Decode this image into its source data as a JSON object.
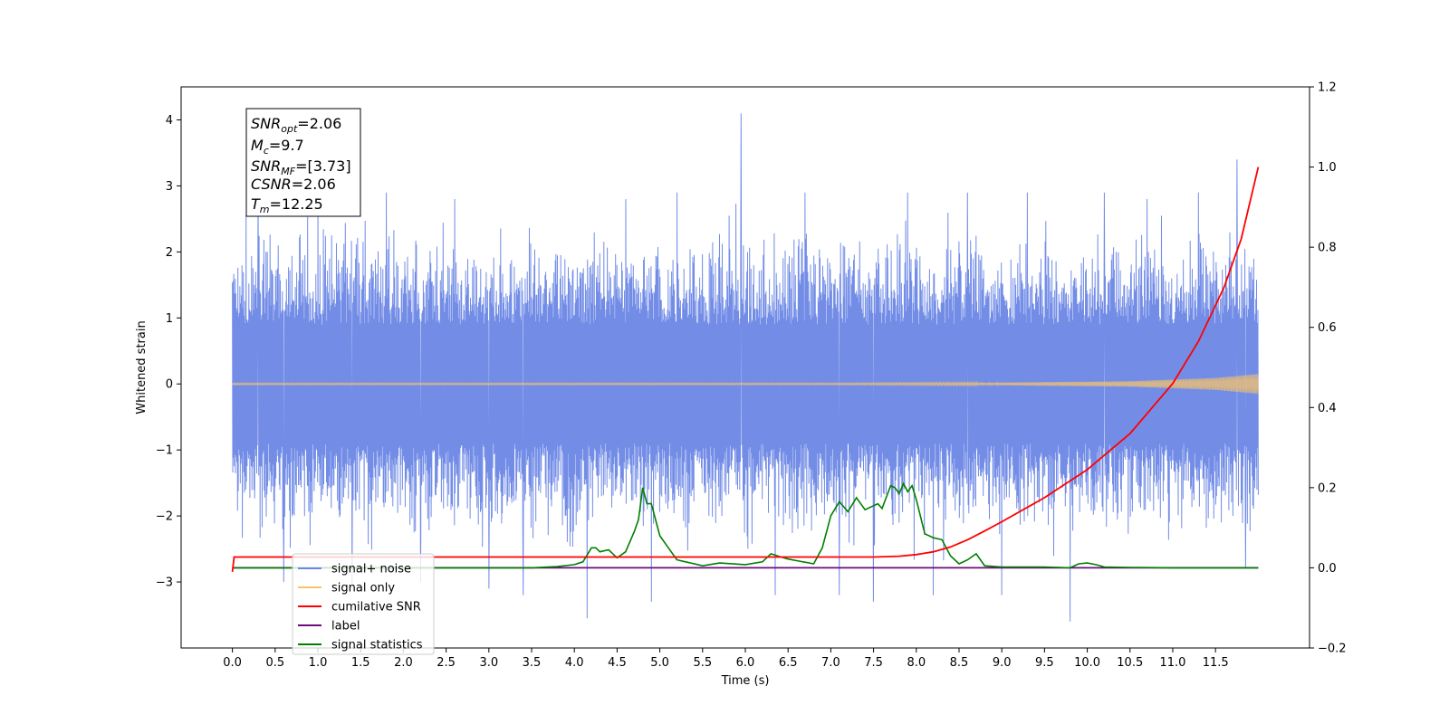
{
  "chart_data": {
    "type": "line",
    "xlabel": "Time (s)",
    "ylabel": "Whitened strain",
    "xlim": [
      -0.6,
      12.6
    ],
    "ylim": [
      -4.0,
      4.5
    ],
    "ylim_right": [
      -0.2,
      1.2
    ],
    "x_ticks": [
      "0.0",
      "0.5",
      "1.0",
      "1.5",
      "2.0",
      "2.5",
      "3.0",
      "3.5",
      "4.0",
      "4.5",
      "5.0",
      "5.5",
      "6.0",
      "6.5",
      "7.0",
      "7.5",
      "8.0",
      "8.5",
      "9.0",
      "9.5",
      "10.0",
      "10.5",
      "11.0",
      "11.5"
    ],
    "y_ticks_left": [
      "−3",
      "−2",
      "−1",
      "0",
      "1",
      "2",
      "3",
      "4"
    ],
    "y_ticks_right": [
      "−0.2",
      "0.0",
      "0.2",
      "0.4",
      "0.6",
      "0.8",
      "1.0",
      "1.2"
    ],
    "grid": false,
    "legend_position": "lower-left",
    "annotation": {
      "lines": [
        {
          "base": "SNR",
          "sub": "opt",
          "rest": "=2.06"
        },
        {
          "base": "M",
          "sub": "c",
          "rest": "=9.7"
        },
        {
          "base": "SNR",
          "sub": "MF",
          "rest": "=[3.73]"
        },
        {
          "base": "CSNR",
          "sub": "",
          "rest": "=2.06"
        },
        {
          "base": "T",
          "sub": "m",
          "rest": "=12.25"
        }
      ]
    },
    "series": [
      {
        "name": "signal+ noise",
        "color": "#6b87e6",
        "axis": "left",
        "x_range": [
          0.0,
          12.0
        ],
        "envelope_typical": 2.6,
        "spikes": [
          {
            "x": 0.3,
            "y": 2.8
          },
          {
            "x": 0.6,
            "y": -3.0
          },
          {
            "x": 1.0,
            "y": 2.7
          },
          {
            "x": 1.4,
            "y": -3.1
          },
          {
            "x": 1.8,
            "y": 2.9
          },
          {
            "x": 2.2,
            "y": -3.0
          },
          {
            "x": 2.6,
            "y": 2.8
          },
          {
            "x": 3.0,
            "y": -3.1
          },
          {
            "x": 3.4,
            "y": -3.2
          },
          {
            "x": 4.15,
            "y": -3.55
          },
          {
            "x": 4.6,
            "y": 2.8
          },
          {
            "x": 4.9,
            "y": -3.3
          },
          {
            "x": 5.2,
            "y": 2.9
          },
          {
            "x": 5.95,
            "y": 4.1
          },
          {
            "x": 6.35,
            "y": -3.2
          },
          {
            "x": 6.7,
            "y": 2.9
          },
          {
            "x": 7.1,
            "y": -3.2
          },
          {
            "x": 7.5,
            "y": -3.3
          },
          {
            "x": 7.9,
            "y": 2.9
          },
          {
            "x": 8.2,
            "y": -3.2
          },
          {
            "x": 8.6,
            "y": 2.9
          },
          {
            "x": 9.0,
            "y": -3.2
          },
          {
            "x": 9.3,
            "y": 2.9
          },
          {
            "x": 9.8,
            "y": -3.6
          },
          {
            "x": 10.2,
            "y": 2.9
          },
          {
            "x": 10.7,
            "y": 2.8
          },
          {
            "x": 11.3,
            "y": 2.9
          },
          {
            "x": 11.75,
            "y": 3.4
          },
          {
            "x": 11.85,
            "y": -2.8
          }
        ]
      },
      {
        "name": "signal only",
        "color": "#f5c36b",
        "axis": "left",
        "x_range": [
          0.0,
          12.0
        ],
        "amplitude_points": [
          [
            0.0,
            0.01
          ],
          [
            7.0,
            0.01
          ],
          [
            9.0,
            0.02
          ],
          [
            10.5,
            0.04
          ],
          [
            11.5,
            0.09
          ],
          [
            12.0,
            0.15
          ]
        ]
      },
      {
        "name": "cumilative SNR",
        "color": "#ff0000",
        "axis": "right",
        "x": [
          0.0,
          0.02,
          7.5,
          7.8,
          8.0,
          8.2,
          8.4,
          8.6,
          8.8,
          9.0,
          9.5,
          10.0,
          10.5,
          11.0,
          11.3,
          11.6,
          11.8,
          12.0
        ],
        "y": [
          -0.01,
          0.027,
          0.027,
          0.029,
          0.033,
          0.04,
          0.052,
          0.07,
          0.092,
          0.115,
          0.175,
          0.245,
          0.335,
          0.46,
          0.565,
          0.7,
          0.82,
          1.0
        ]
      },
      {
        "name": "label",
        "color": "#6a0d7a",
        "axis": "right",
        "x": [
          0.0,
          12.0
        ],
        "y": [
          0.0,
          0.0
        ]
      },
      {
        "name": "signal statistics",
        "color": "#007f00",
        "axis": "right",
        "x": [
          0.0,
          3.5,
          3.8,
          4.0,
          4.1,
          4.2,
          4.25,
          4.3,
          4.4,
          4.5,
          4.6,
          4.7,
          4.75,
          4.8,
          4.85,
          4.9,
          5.0,
          5.1,
          5.2,
          5.3,
          5.5,
          5.7,
          6.0,
          6.2,
          6.3,
          6.4,
          6.5,
          6.6,
          6.8,
          6.9,
          7.0,
          7.1,
          7.2,
          7.3,
          7.35,
          7.4,
          7.5,
          7.55,
          7.6,
          7.7,
          7.75,
          7.8,
          7.85,
          7.9,
          7.95,
          8.0,
          8.1,
          8.2,
          8.3,
          8.35,
          8.4,
          8.5,
          8.6,
          8.7,
          8.8,
          9.0,
          9.5,
          9.8,
          9.9,
          10.0,
          10.1,
          10.2,
          10.5,
          11.0,
          12.0
        ],
        "y": [
          0.0,
          0.0,
          0.003,
          0.008,
          0.015,
          0.05,
          0.05,
          0.04,
          0.045,
          0.025,
          0.04,
          0.09,
          0.12,
          0.2,
          0.16,
          0.16,
          0.08,
          0.05,
          0.02,
          0.015,
          0.005,
          0.012,
          0.008,
          0.015,
          0.035,
          0.028,
          0.022,
          0.018,
          0.01,
          0.05,
          0.13,
          0.165,
          0.14,
          0.175,
          0.16,
          0.145,
          0.155,
          0.16,
          0.148,
          0.205,
          0.2,
          0.185,
          0.21,
          0.19,
          0.205,
          0.17,
          0.085,
          0.075,
          0.07,
          0.05,
          0.03,
          0.01,
          0.02,
          0.035,
          0.005,
          0.002,
          0.002,
          0.0,
          0.01,
          0.012,
          0.008,
          0.002,
          0.001,
          0.0,
          0.0
        ]
      }
    ]
  }
}
